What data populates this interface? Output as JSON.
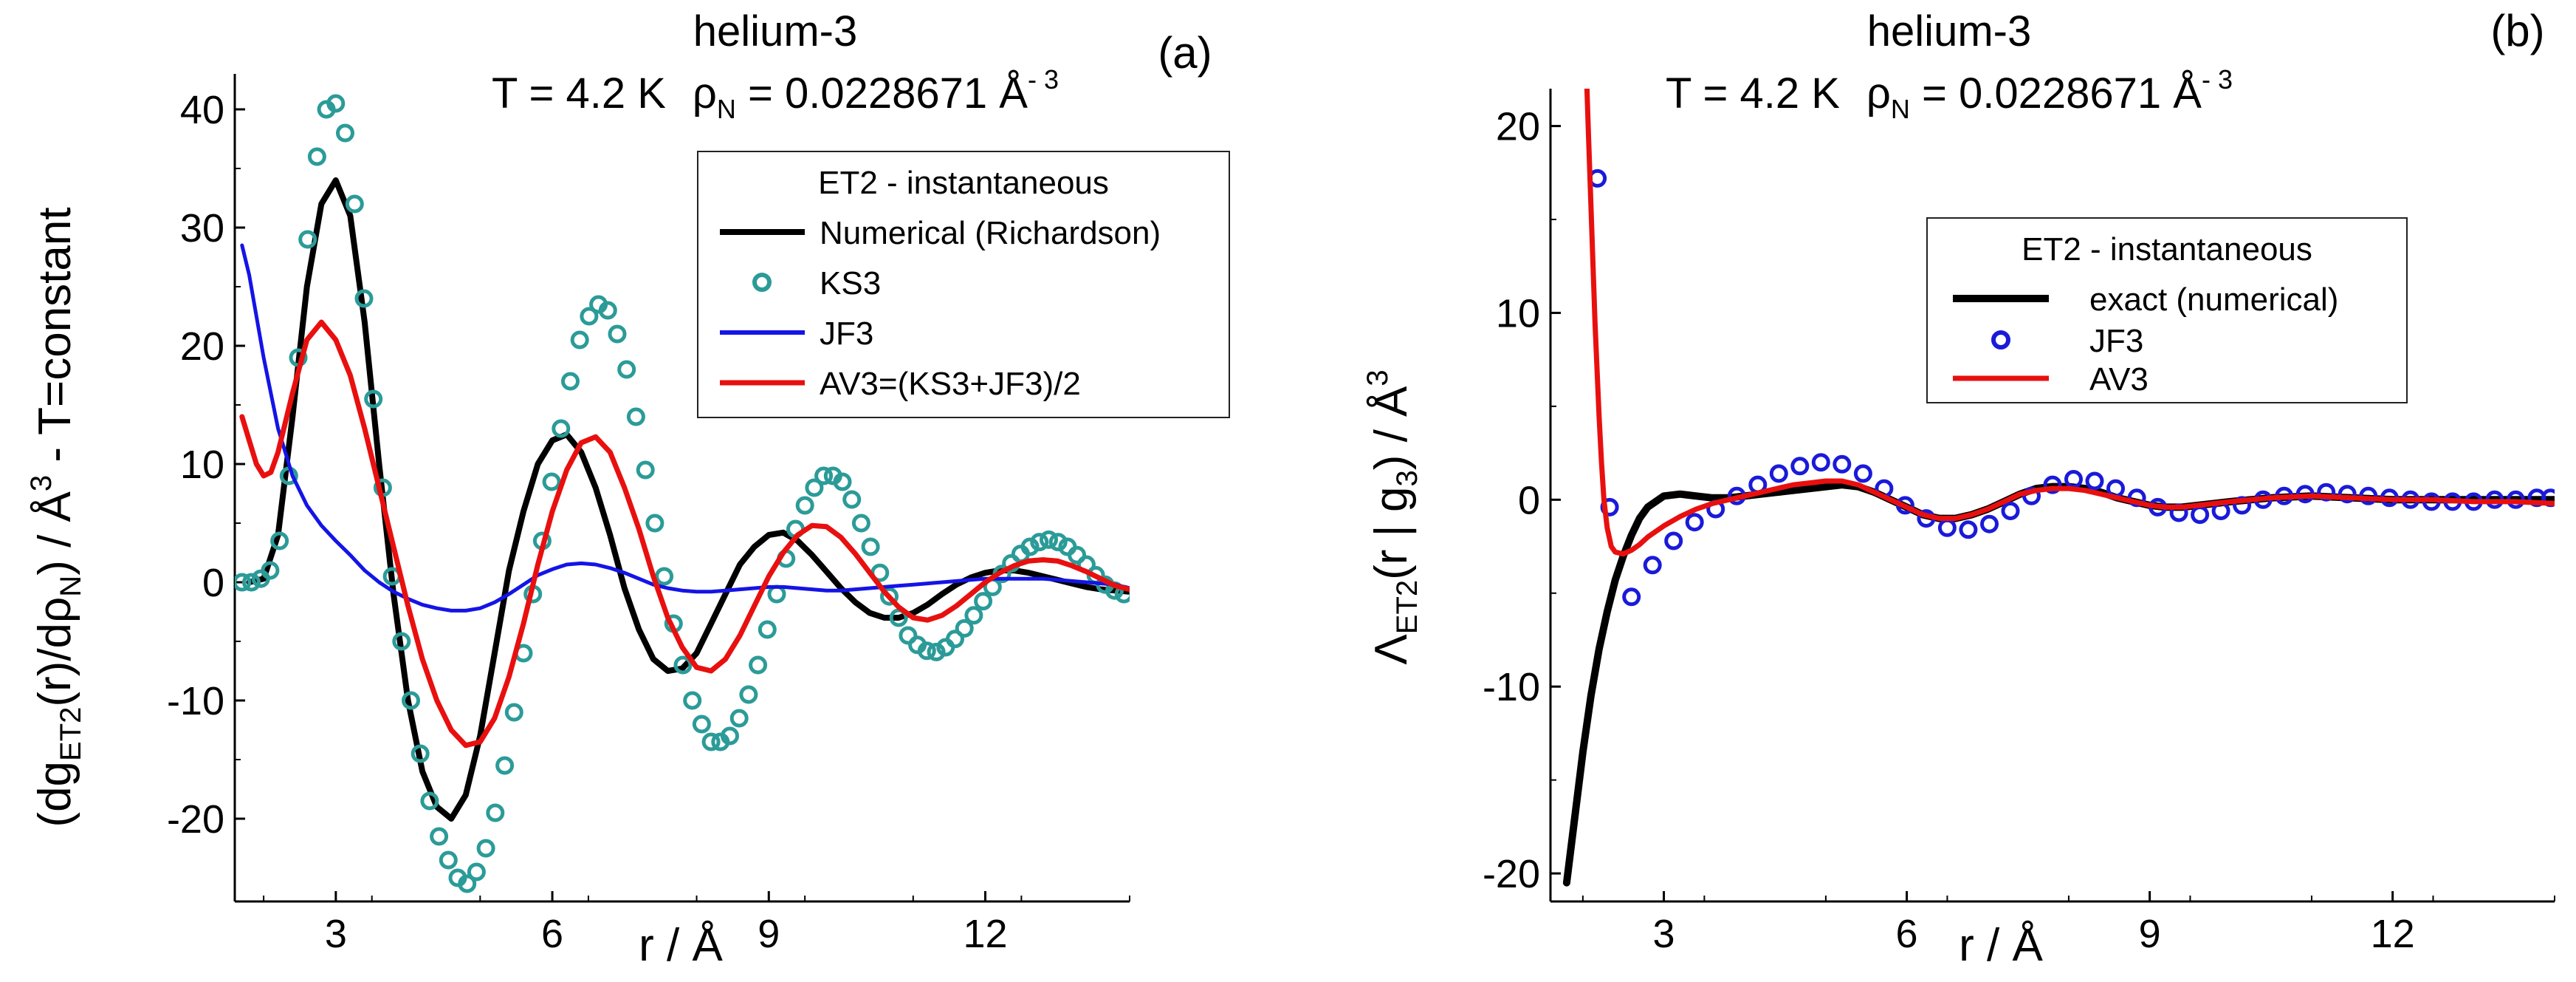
{
  "chart_data": [
    {
      "type": "line",
      "panel_label": "(a)",
      "title": "helium-3",
      "subtitle": {
        "temp": "T = 4.2 K",
        "rho_sym": "ρ",
        "rho_sub": "N",
        "rho_val": " = 0.0228671 Å",
        "rho_exp": "- 3"
      },
      "xlabel": "r / Å",
      "ylabel": {
        "p1": "(dg",
        "sub1": "ET2",
        "p2": "(r)/dρ",
        "sub2": "N",
        "p3": ") / Å",
        "sup": "3",
        "p4": " - T=constant"
      },
      "xlim": [
        1.6,
        14.0
      ],
      "ylim": [
        -27,
        43
      ],
      "xticks": [
        3,
        6,
        9,
        12
      ],
      "xtick_labels": [
        "3",
        "6",
        "9",
        "12"
      ],
      "yticks": [
        -20,
        -10,
        0,
        10,
        20,
        30,
        40
      ],
      "ytick_labels": [
        "-20",
        "-10",
        "0",
        "10",
        "20",
        "30",
        "40"
      ],
      "grid": false,
      "legend": {
        "placement": "top-right",
        "title": "ET2 - instantaneous",
        "entries": [
          "Numerical (Richardson)",
          "KS3",
          "JF3",
          "AV3=(KS3+JF3)/2"
        ]
      },
      "series": [
        {
          "name": "Numerical (Richardson)",
          "color": "#000000",
          "style": "line",
          "x": [
            1.8,
            2.0,
            2.2,
            2.4,
            2.6,
            2.8,
            3.0,
            3.2,
            3.4,
            3.6,
            3.8,
            4.0,
            4.2,
            4.4,
            4.6,
            4.8,
            5.0,
            5.2,
            5.4,
            5.6,
            5.8,
            6.0,
            6.2,
            6.4,
            6.6,
            6.8,
            7.0,
            7.2,
            7.4,
            7.6,
            7.8,
            8.0,
            8.2,
            8.4,
            8.6,
            8.8,
            9.0,
            9.2,
            9.4,
            9.6,
            9.8,
            10.0,
            10.2,
            10.4,
            10.6,
            10.8,
            11.0,
            11.2,
            11.4,
            11.6,
            11.8,
            12.0,
            12.2,
            12.4,
            12.6,
            12.8,
            13.0,
            13.2,
            13.4,
            13.6,
            13.8,
            14.0
          ],
          "y": [
            0.0,
            0.3,
            4.0,
            14.0,
            25.0,
            32.0,
            34.0,
            31.0,
            22.0,
            10.0,
            -1.0,
            -10.0,
            -16.0,
            -19.0,
            -20.0,
            -18.0,
            -13.0,
            -6.0,
            1.0,
            6.0,
            10.0,
            12.0,
            12.5,
            11.0,
            8.0,
            4.0,
            -0.5,
            -4.0,
            -6.5,
            -7.5,
            -7.3,
            -6.0,
            -3.5,
            -1.0,
            1.5,
            3.0,
            4.0,
            4.2,
            3.5,
            2.3,
            0.9,
            -0.5,
            -1.7,
            -2.6,
            -3.0,
            -3.0,
            -2.6,
            -1.9,
            -1.0,
            -0.2,
            0.4,
            0.8,
            1.0,
            1.0,
            0.8,
            0.5,
            0.2,
            -0.1,
            -0.4,
            -0.6,
            -0.7,
            -0.8
          ]
        },
        {
          "name": "KS3",
          "color": "#2b9b98",
          "style": "markers",
          "x": [
            1.7,
            1.83,
            1.96,
            2.09,
            2.22,
            2.35,
            2.48,
            2.61,
            2.74,
            2.87,
            3.0,
            3.13,
            3.26,
            3.39,
            3.52,
            3.65,
            3.78,
            3.91,
            4.04,
            4.17,
            4.3,
            4.43,
            4.56,
            4.69,
            4.82,
            4.95,
            5.08,
            5.21,
            5.34,
            5.47,
            5.6,
            5.73,
            5.86,
            5.99,
            6.12,
            6.25,
            6.38,
            6.51,
            6.64,
            6.77,
            6.9,
            7.03,
            7.16,
            7.29,
            7.42,
            7.55,
            7.68,
            7.81,
            7.94,
            8.07,
            8.2,
            8.33,
            8.46,
            8.59,
            8.72,
            8.85,
            8.98,
            9.11,
            9.24,
            9.37,
            9.5,
            9.63,
            9.76,
            9.89,
            10.02,
            10.15,
            10.28,
            10.41,
            10.54,
            10.67,
            10.8,
            10.93,
            11.06,
            11.19,
            11.32,
            11.45,
            11.58,
            11.71,
            11.84,
            11.97,
            12.1,
            12.23,
            12.36,
            12.49,
            12.62,
            12.75,
            12.88,
            13.01,
            13.14,
            13.27,
            13.4,
            13.53,
            13.66,
            13.79,
            13.92
          ],
          "y": [
            0.0,
            0.0,
            0.3,
            1.0,
            3.5,
            9.0,
            19.0,
            29.0,
            36.0,
            40.0,
            40.5,
            38.0,
            32.0,
            24.0,
            15.5,
            8.0,
            0.5,
            -5.0,
            -10.0,
            -14.5,
            -18.5,
            -21.5,
            -23.5,
            -25.0,
            -25.5,
            -24.5,
            -22.5,
            -19.5,
            -15.5,
            -11.0,
            -6.0,
            -1.0,
            3.5,
            8.5,
            13.0,
            17.0,
            20.5,
            22.5,
            23.5,
            23.0,
            21.0,
            18.0,
            14.0,
            9.5,
            5.0,
            0.5,
            -3.5,
            -7.0,
            -10.0,
            -12.0,
            -13.5,
            -13.5,
            -13.0,
            -11.5,
            -9.5,
            -7.0,
            -4.0,
            -1.0,
            2.0,
            4.5,
            6.5,
            8.0,
            9.0,
            9.0,
            8.5,
            7.0,
            5.0,
            3.0,
            0.8,
            -1.2,
            -3.0,
            -4.5,
            -5.3,
            -5.8,
            -5.9,
            -5.5,
            -4.8,
            -3.9,
            -2.8,
            -1.6,
            -0.4,
            0.7,
            1.6,
            2.4,
            3.0,
            3.4,
            3.6,
            3.4,
            3.0,
            2.3,
            1.5,
            0.6,
            -0.2,
            -0.7,
            -1.0
          ]
        },
        {
          "name": "JF3",
          "color": "#1414e6",
          "style": "line",
          "x": [
            1.7,
            1.8,
            2.0,
            2.2,
            2.4,
            2.6,
            2.8,
            3.0,
            3.2,
            3.4,
            3.6,
            3.8,
            4.0,
            4.2,
            4.4,
            4.6,
            4.8,
            5.0,
            5.2,
            5.4,
            5.6,
            5.8,
            6.0,
            6.2,
            6.4,
            6.6,
            6.8,
            7.0,
            7.2,
            7.4,
            7.6,
            7.8,
            8.0,
            8.2,
            8.4,
            8.6,
            8.8,
            9.0,
            9.2,
            9.4,
            9.6,
            9.8,
            10.0,
            10.2,
            10.4,
            10.6,
            10.8,
            11.0,
            11.2,
            11.4,
            11.6,
            11.8,
            12.0,
            12.2,
            12.4,
            12.6,
            12.8,
            13.0,
            13.2,
            13.4,
            13.6,
            13.8,
            14.0
          ],
          "y": [
            28.5,
            26.0,
            19.0,
            13.0,
            9.0,
            6.5,
            4.8,
            3.5,
            2.3,
            1.0,
            0.0,
            -0.8,
            -1.4,
            -1.9,
            -2.2,
            -2.4,
            -2.4,
            -2.2,
            -1.7,
            -1.0,
            -0.2,
            0.6,
            1.1,
            1.5,
            1.6,
            1.5,
            1.2,
            0.8,
            0.3,
            -0.2,
            -0.5,
            -0.7,
            -0.8,
            -0.8,
            -0.7,
            -0.6,
            -0.5,
            -0.4,
            -0.4,
            -0.5,
            -0.6,
            -0.7,
            -0.7,
            -0.6,
            -0.5,
            -0.4,
            -0.3,
            -0.2,
            -0.1,
            0.0,
            0.1,
            0.2,
            0.3,
            0.3,
            0.3,
            0.3,
            0.3,
            0.2,
            0.1,
            0.0,
            -0.1,
            -0.2,
            -0.5
          ]
        },
        {
          "name": "AV3=(KS3+JF3)/2",
          "color": "#e8100f",
          "style": "line",
          "x": [
            1.7,
            1.8,
            1.9,
            2.0,
            2.1,
            2.2,
            2.4,
            2.6,
            2.8,
            3.0,
            3.2,
            3.4,
            3.6,
            3.8,
            4.0,
            4.2,
            4.4,
            4.6,
            4.8,
            5.0,
            5.2,
            5.4,
            5.6,
            5.8,
            6.0,
            6.2,
            6.4,
            6.6,
            6.8,
            7.0,
            7.2,
            7.4,
            7.6,
            7.8,
            8.0,
            8.2,
            8.4,
            8.6,
            8.8,
            9.0,
            9.2,
            9.4,
            9.6,
            9.8,
            10.0,
            10.2,
            10.4,
            10.6,
            10.8,
            11.0,
            11.2,
            11.4,
            11.6,
            11.8,
            12.0,
            12.2,
            12.4,
            12.6,
            12.8,
            13.0,
            13.2,
            13.4,
            13.6,
            13.8,
            14.0
          ],
          "y": [
            14.0,
            12.0,
            10.0,
            9.0,
            9.3,
            11.0,
            16.0,
            20.5,
            22.0,
            20.5,
            17.5,
            13.0,
            8.0,
            3.0,
            -2.0,
            -6.5,
            -10.0,
            -12.5,
            -13.8,
            -13.5,
            -11.5,
            -8.0,
            -3.5,
            1.5,
            6.0,
            9.5,
            11.8,
            12.3,
            11.0,
            8.0,
            4.5,
            0.5,
            -3.0,
            -5.5,
            -7.2,
            -7.5,
            -6.5,
            -4.5,
            -2.0,
            0.5,
            2.5,
            4.0,
            4.8,
            4.7,
            3.8,
            2.4,
            0.8,
            -0.8,
            -2.1,
            -3.0,
            -3.2,
            -2.8,
            -2.0,
            -1.0,
            0.0,
            0.8,
            1.4,
            1.8,
            1.9,
            1.8,
            1.4,
            0.9,
            0.3,
            -0.3,
            -0.6
          ]
        }
      ]
    },
    {
      "type": "line",
      "panel_label": "(b)",
      "title": "helium-3",
      "subtitle": {
        "temp": "T = 4.2 K",
        "rho_sym": "ρ",
        "rho_sub": "N",
        "rho_val": " = 0.0228671 Å",
        "rho_exp": "- 3"
      },
      "xlabel": "r / Å",
      "ylabel": {
        "p1": "Λ",
        "sub1": "ET2",
        "p2": "(r | g",
        "sub2": "3",
        "p3": ") / Å",
        "sup": "3"
      },
      "xlim": [
        1.6,
        14.0
      ],
      "ylim": [
        -21.5,
        22
      ],
      "xticks": [
        3,
        6,
        9,
        12
      ],
      "xtick_labels": [
        "3",
        "6",
        "9",
        "12"
      ],
      "yticks": [
        -20,
        -10,
        0,
        10,
        20
      ],
      "ytick_labels": [
        "-20",
        "-10",
        "0",
        "10",
        "20"
      ],
      "grid": false,
      "legend": {
        "placement": "top-right",
        "title": "ET2 - instantaneous",
        "entries": [
          "exact (numerical)",
          "JF3",
          "AV3"
        ]
      },
      "series": [
        {
          "name": "exact (numerical)",
          "color": "#000000",
          "style": "line",
          "x": [
            1.8,
            1.9,
            2.0,
            2.1,
            2.2,
            2.3,
            2.4,
            2.5,
            2.6,
            2.7,
            2.8,
            3.0,
            3.2,
            3.4,
            3.6,
            3.8,
            4.0,
            4.2,
            4.4,
            4.6,
            4.8,
            5.0,
            5.2,
            5.4,
            5.6,
            5.8,
            6.0,
            6.2,
            6.4,
            6.6,
            6.8,
            7.0,
            7.2,
            7.4,
            7.6,
            7.8,
            8.0,
            8.2,
            8.4,
            8.6,
            8.8,
            9.0,
            9.2,
            9.4,
            9.6,
            9.8,
            10.0,
            10.5,
            11.0,
            11.5,
            12.0,
            12.5,
            13.0,
            13.5,
            14.0
          ],
          "y": [
            -20.5,
            -17.0,
            -13.5,
            -10.5,
            -8.0,
            -6.0,
            -4.3,
            -3.0,
            -1.9,
            -1.0,
            -0.4,
            0.2,
            0.3,
            0.2,
            0.1,
            0.1,
            0.2,
            0.3,
            0.4,
            0.5,
            0.6,
            0.7,
            0.8,
            0.7,
            0.4,
            0.0,
            -0.4,
            -0.8,
            -1.0,
            -1.0,
            -0.8,
            -0.5,
            -0.1,
            0.3,
            0.6,
            0.7,
            0.7,
            0.6,
            0.4,
            0.1,
            -0.1,
            -0.3,
            -0.4,
            -0.4,
            -0.3,
            -0.2,
            -0.1,
            0.1,
            0.2,
            0.1,
            0.0,
            0.0,
            0.0,
            0.0,
            0.0
          ]
        },
        {
          "name": "JF3",
          "color": "#1a1ad9",
          "style": "markers",
          "x": [
            2.18,
            2.33,
            2.6,
            2.86,
            3.12,
            3.38,
            3.64,
            3.9,
            4.16,
            4.42,
            4.68,
            4.94,
            5.2,
            5.46,
            5.72,
            5.98,
            6.24,
            6.5,
            6.76,
            7.02,
            7.28,
            7.54,
            7.8,
            8.06,
            8.32,
            8.58,
            8.84,
            9.1,
            9.36,
            9.62,
            9.88,
            10.14,
            10.4,
            10.66,
            10.92,
            11.18,
            11.44,
            11.7,
            11.96,
            12.22,
            12.48,
            12.74,
            13.0,
            13.26,
            13.52,
            13.78,
            13.95
          ],
          "y": [
            17.2,
            -0.4,
            -5.2,
            -3.5,
            -2.2,
            -1.2,
            -0.5,
            0.2,
            0.8,
            1.4,
            1.8,
            2.0,
            1.9,
            1.4,
            0.6,
            -0.3,
            -1.0,
            -1.5,
            -1.6,
            -1.3,
            -0.6,
            0.2,
            0.8,
            1.1,
            1.0,
            0.6,
            0.1,
            -0.4,
            -0.7,
            -0.8,
            -0.6,
            -0.3,
            0.0,
            0.2,
            0.3,
            0.4,
            0.3,
            0.2,
            0.1,
            0.0,
            -0.1,
            -0.1,
            -0.1,
            0.0,
            0.0,
            0.1,
            0.1
          ]
        },
        {
          "name": "AV3",
          "color": "#e8100f",
          "style": "line",
          "x": [
            2.05,
            2.07,
            2.09,
            2.11,
            2.13,
            2.15,
            2.17,
            2.2,
            2.23,
            2.26,
            2.3,
            2.35,
            2.4,
            2.5,
            2.6,
            2.7,
            2.8,
            3.0,
            3.2,
            3.4,
            3.6,
            3.8,
            4.0,
            4.2,
            4.4,
            4.6,
            4.8,
            5.0,
            5.2,
            5.4,
            5.6,
            5.8,
            6.0,
            6.2,
            6.4,
            6.6,
            6.8,
            7.0,
            7.2,
            7.4,
            7.6,
            7.8,
            8.0,
            8.2,
            8.4,
            8.6,
            8.8,
            9.0,
            9.2,
            9.4,
            9.6,
            9.8,
            10.0,
            10.5,
            11.0,
            11.5,
            12.0,
            12.5,
            13.0,
            13.5,
            14.0
          ],
          "y": [
            22.0,
            19.5,
            17.0,
            14.5,
            12.0,
            9.5,
            7.5,
            4.5,
            2.0,
            0.0,
            -1.5,
            -2.5,
            -2.8,
            -2.9,
            -2.7,
            -2.4,
            -2.0,
            -1.4,
            -0.9,
            -0.5,
            -0.2,
            0.0,
            0.2,
            0.4,
            0.6,
            0.8,
            0.9,
            1.0,
            1.0,
            0.8,
            0.4,
            0.0,
            -0.4,
            -0.8,
            -1.0,
            -1.0,
            -0.8,
            -0.5,
            -0.1,
            0.3,
            0.5,
            0.6,
            0.6,
            0.5,
            0.3,
            0.1,
            -0.1,
            -0.3,
            -0.4,
            -0.4,
            -0.3,
            -0.2,
            -0.1,
            0.1,
            0.2,
            0.1,
            0.0,
            0.0,
            -0.1,
            -0.1,
            -0.2
          ]
        }
      ]
    }
  ]
}
